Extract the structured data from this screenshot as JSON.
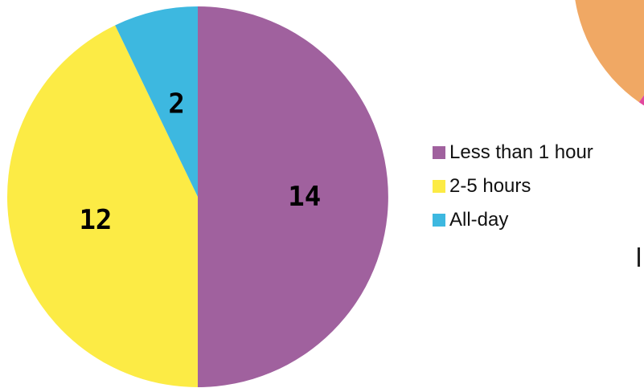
{
  "chart_data": {
    "type": "pie",
    "slices": [
      {
        "label": "Less than 1 hour",
        "value": 14,
        "color": "#A0619E"
      },
      {
        "label": "2-5 hours",
        "value": 12,
        "color": "#FCEB45"
      },
      {
        "label": "All-day",
        "value": 2,
        "color": "#3DB8E0"
      }
    ],
    "start_angle_deg": 0,
    "direction": "clockwise",
    "data_labels": true,
    "legend_position": "right"
  },
  "partial_chart": {
    "colors": [
      "#F0A864",
      "#E2489E"
    ]
  }
}
